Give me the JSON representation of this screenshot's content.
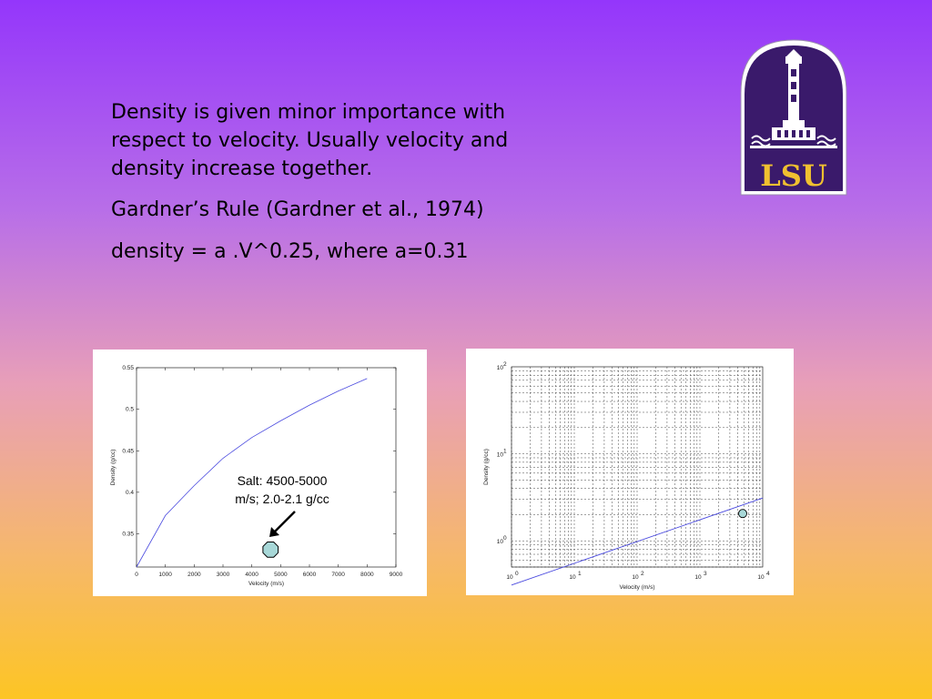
{
  "slide": {
    "paragraph1": "Density is given minor importance with respect to velocity.  Usually velocity and density increase together.",
    "paragraph2": "Gardner’s Rule (Gardner et al., 1974)",
    "paragraph3": "density = a .V^0.25, where a=0.31"
  },
  "logo": {
    "text": "LSU",
    "colors": {
      "purple": "#3a1a6b",
      "gold": "#f0c030"
    }
  },
  "colors": {
    "line": "#4a4adf",
    "marker_fill": "#a8d8d8"
  },
  "chart_data": [
    {
      "type": "line",
      "scale": "linear",
      "xlabel": "Velocity (m/s)",
      "ylabel": "Density (g/cc)",
      "xlim": [
        0,
        9000
      ],
      "ylim": [
        0.31,
        0.55
      ],
      "x_ticks": [
        "0",
        "1000",
        "2000",
        "3000",
        "4000",
        "5000",
        "6000",
        "7000",
        "8000",
        "9000"
      ],
      "y_ticks": [
        "0.35",
        "0.4",
        "0.45",
        "0.5",
        "0.55"
      ],
      "series": [
        {
          "x": [
            0,
            1000,
            2000,
            3000,
            4000,
            5000,
            6000,
            7000,
            8000
          ],
          "y": [
            0.31,
            0.372,
            0.408,
            0.441,
            0.466,
            0.486,
            0.505,
            0.522,
            0.537
          ]
        }
      ],
      "marker": {
        "x": 4650,
        "y": 0.331
      },
      "annotation": {
        "line1": "Salt: 4500-5000",
        "line2": "m/s; 2.0-2.1 g/cc"
      },
      "grid": false
    },
    {
      "type": "line",
      "scale": "log-log",
      "xlabel": "Velocity (m/s)",
      "ylabel": "Density (g/cc)",
      "xlim": [
        1,
        10000
      ],
      "ylim": [
        0.5,
        100
      ],
      "x_tick_exponents": [
        "0",
        "1",
        "2",
        "3",
        "4"
      ],
      "y_tick_exponents": [
        "0",
        "1",
        "2"
      ],
      "tick_base": "10",
      "series": [
        {
          "x": [
            1,
            10000
          ],
          "y": [
            0.31,
            3.1
          ]
        }
      ],
      "marker": {
        "x": 4800,
        "y": 2.06
      },
      "grid": true
    }
  ]
}
